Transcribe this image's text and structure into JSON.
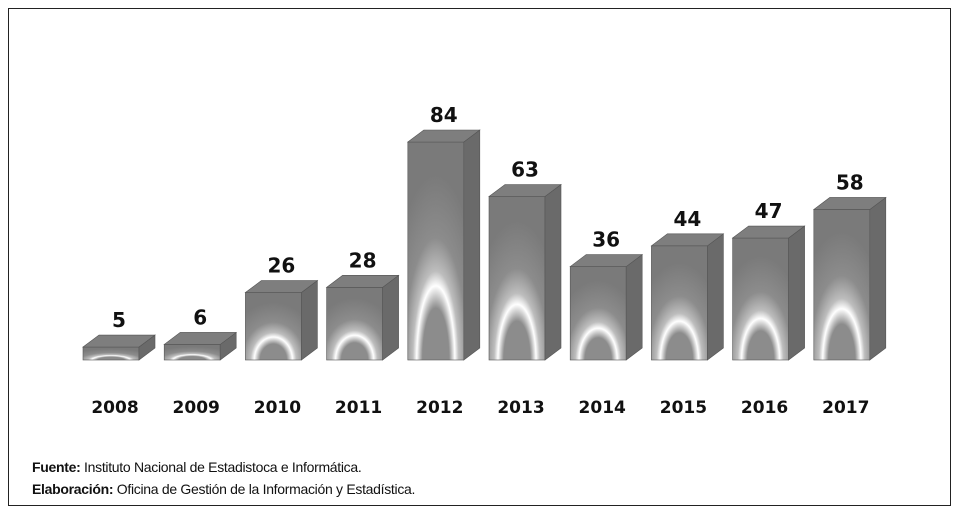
{
  "chart_data": {
    "type": "bar",
    "categories": [
      "2008",
      "2009",
      "2010",
      "2011",
      "2012",
      "2013",
      "2014",
      "2015",
      "2016",
      "2017"
    ],
    "values": [
      5,
      6,
      26,
      28,
      84,
      63,
      36,
      44,
      47,
      58
    ],
    "ylim": [
      0,
      84
    ],
    "grid": false,
    "style": "3d",
    "colors": {
      "front": "#8c8c8c",
      "side": "#6a6a6a",
      "top": "#7e7e7e",
      "glow": "#ffffff"
    }
  },
  "notes": {
    "source_label": "Fuente:",
    "source_text": " Instituto Nacional de Estadistoca e Informática.",
    "credit_label": "Elaboración:",
    "credit_text": " Oficina de Gestión de la Información y Estadística."
  }
}
